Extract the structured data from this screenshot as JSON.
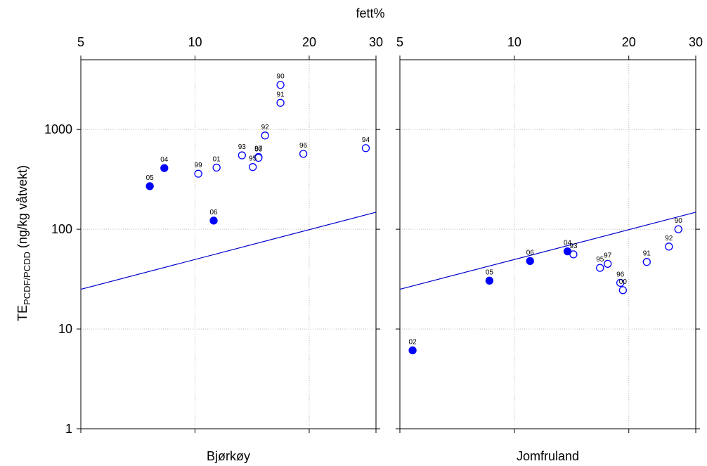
{
  "chart_data": {
    "type": "scatter",
    "shared_x_title": "fett%",
    "y_title_main": "TE",
    "y_title_sub": "PCDF/PCDD",
    "y_title_rest": " (ng/kg våtvekt)",
    "x_scale": "log",
    "y_scale": "log",
    "xlim": [
      5,
      30
    ],
    "ylim": [
      1,
      5000
    ],
    "x_ticks": [
      5,
      10,
      20,
      30
    ],
    "x_tick_labels": [
      "5",
      "10",
      "20",
      "30"
    ],
    "y_ticks": [
      1,
      10,
      100,
      1000
    ],
    "y_tick_labels": [
      "1",
      "10",
      "100",
      "1000"
    ],
    "grid": true,
    "colors": {
      "marker": "#0000ff",
      "line": "#0000cc"
    },
    "panels": [
      {
        "title": "Bjørkøy",
        "regression_line": {
          "x": [
            5,
            30
          ],
          "y": [
            25,
            148
          ]
        },
        "points": [
          {
            "label": "90",
            "x": 16.8,
            "y": 2800,
            "filled": false
          },
          {
            "label": "91",
            "x": 16.8,
            "y": 1850,
            "filled": false
          },
          {
            "label": "92",
            "x": 15.3,
            "y": 870,
            "filled": false
          },
          {
            "label": "93",
            "x": 13.3,
            "y": 550,
            "filled": false
          },
          {
            "label": "97",
            "x": 14.7,
            "y": 530,
            "filled": false
          },
          {
            "label": "00",
            "x": 14.7,
            "y": 520,
            "filled": false
          },
          {
            "label": "95",
            "x": 14.2,
            "y": 420,
            "filled": false
          },
          {
            "label": "96",
            "x": 19.3,
            "y": 570,
            "filled": false
          },
          {
            "label": "94",
            "x": 28.2,
            "y": 650,
            "filled": false
          },
          {
            "label": "01",
            "x": 11.4,
            "y": 415,
            "filled": false
          },
          {
            "label": "99",
            "x": 10.2,
            "y": 360,
            "filled": false
          },
          {
            "label": "04",
            "x": 8.3,
            "y": 410,
            "filled": true
          },
          {
            "label": "05",
            "x": 7.6,
            "y": 270,
            "filled": true
          },
          {
            "label": "06",
            "x": 11.2,
            "y": 122,
            "filled": true
          }
        ]
      },
      {
        "title": "Jomfruland",
        "regression_line": {
          "x": [
            5,
            30
          ],
          "y": [
            25,
            148
          ]
        },
        "points": [
          {
            "label": "90",
            "x": 27.0,
            "y": 100,
            "filled": false
          },
          {
            "label": "92",
            "x": 25.5,
            "y": 67,
            "filled": false
          },
          {
            "label": "91",
            "x": 22.3,
            "y": 47,
            "filled": false
          },
          {
            "label": "93",
            "x": 14.3,
            "y": 56,
            "filled": false
          },
          {
            "label": "97",
            "x": 17.6,
            "y": 45,
            "filled": false
          },
          {
            "label": "95",
            "x": 16.8,
            "y": 41,
            "filled": false
          },
          {
            "label": "96",
            "x": 19.0,
            "y": 29,
            "filled": false
          },
          {
            "label": "00",
            "x": 19.3,
            "y": 24.5,
            "filled": false
          },
          {
            "label": "04",
            "x": 13.8,
            "y": 60,
            "filled": true
          },
          {
            "label": "06",
            "x": 11.0,
            "y": 48,
            "filled": true
          },
          {
            "label": "05",
            "x": 8.6,
            "y": 30.5,
            "filled": true
          },
          {
            "label": "02",
            "x": 5.4,
            "y": 6.1,
            "filled": true
          }
        ]
      }
    ]
  }
}
